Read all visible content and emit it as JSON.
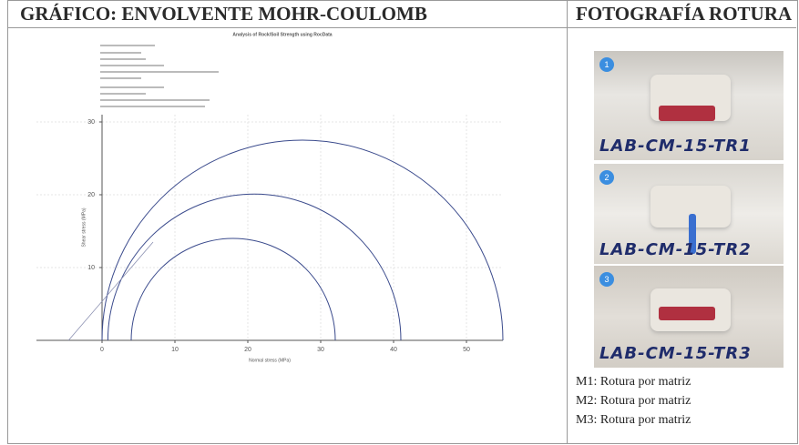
{
  "header": {
    "left": "GRÁFICO: ENVOLVENTE MOHR-COULOMB",
    "right": "FOTOGRAFÍA ROTURA"
  },
  "chart_data": {
    "type": "mohr",
    "title": "Analysis of Rock/Soil Strength using RocData",
    "x_label": "Normal stress (MPa)",
    "y_label": "Shear stress (MPa)",
    "circles": [
      {
        "sigma3": 4,
        "sigma1": 32
      },
      {
        "sigma3": 0.8,
        "sigma1": 41
      },
      {
        "sigma3": 0,
        "sigma1": 55
      }
    ],
    "envelope": {
      "x": [
        -4.6,
        7
      ],
      "y": [
        0,
        13.5
      ]
    },
    "xlim": [
      -9,
      55
    ],
    "ylim": [
      0,
      31
    ],
    "xticks": [
      0,
      10,
      20,
      30,
      40,
      50
    ],
    "yticks": [
      10,
      20,
      30
    ],
    "color": "#3a4a8c"
  },
  "photos": [
    {
      "number": "1",
      "label": "LAB-CM-15-TR1"
    },
    {
      "number": "2",
      "label": "LAB-CM-15-TR2"
    },
    {
      "number": "3",
      "label": "LAB-CM-15-TR3"
    }
  ],
  "notes": [
    "M1: Rotura por matriz",
    "M2: Rotura por matriz",
    "M3: Rotura por matriz"
  ]
}
